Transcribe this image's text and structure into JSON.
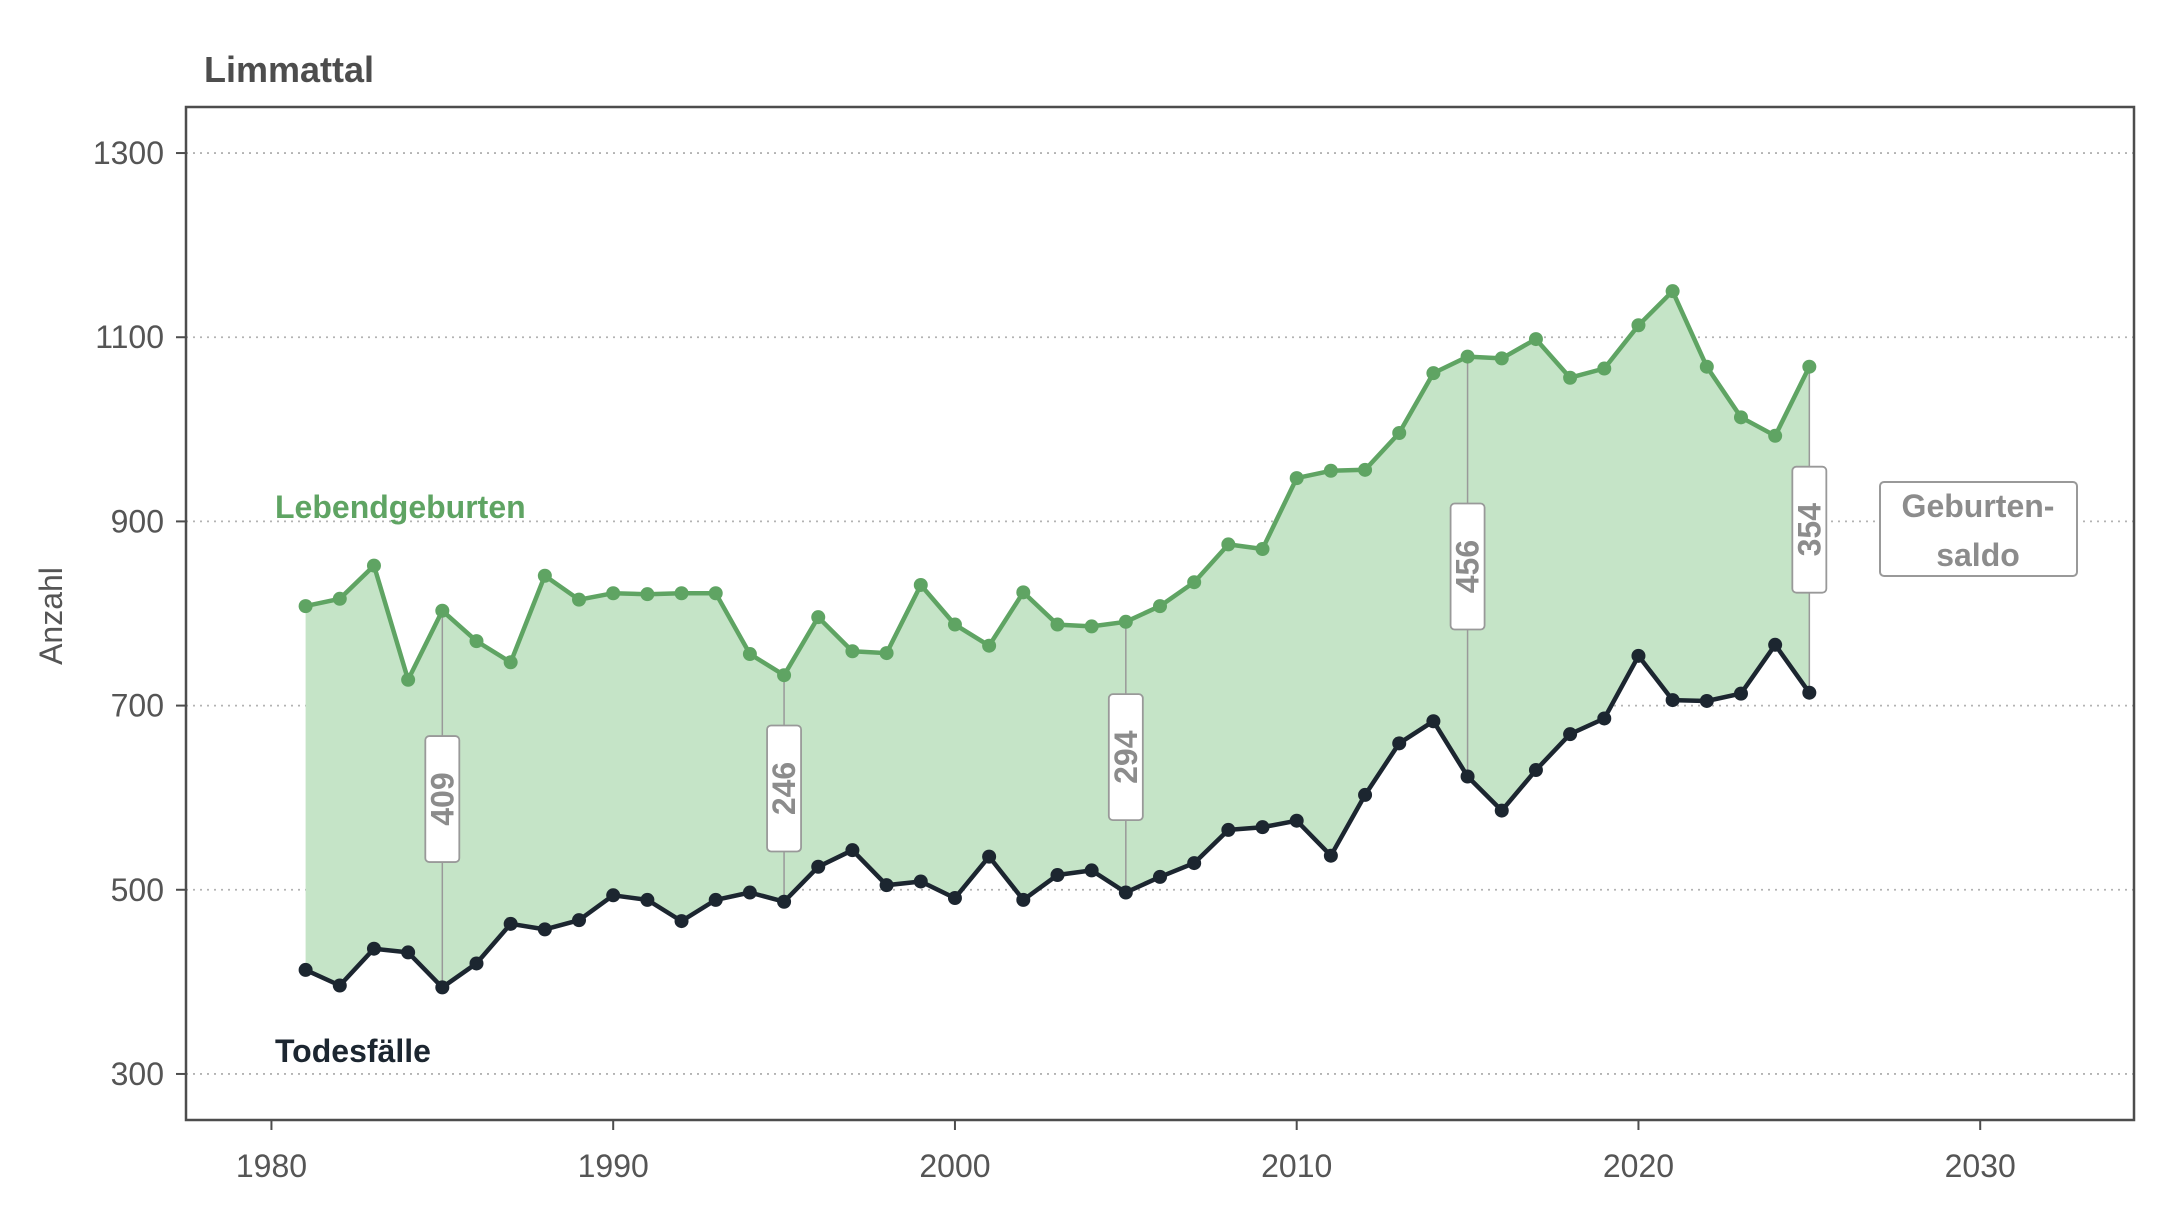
{
  "chart_data": {
    "type": "line",
    "title": "Limmattal",
    "ylabel": "Anzahl",
    "xlabel": "",
    "xlim": [
      1977.5,
      2034.5
    ],
    "ylim": [
      250,
      1350
    ],
    "x_ticks": [
      1980,
      1990,
      2000,
      2010,
      2020,
      2030
    ],
    "y_ticks": [
      300,
      500,
      700,
      900,
      1100,
      1300
    ],
    "grid": "horizontal dotted",
    "x": [
      1981,
      1982,
      1983,
      1984,
      1985,
      1986,
      1987,
      1988,
      1989,
      1990,
      1991,
      1992,
      1993,
      1994,
      1995,
      1996,
      1997,
      1998,
      1999,
      2000,
      2001,
      2002,
      2003,
      2004,
      2005,
      2006,
      2007,
      2008,
      2009,
      2010,
      2011,
      2012,
      2013,
      2014,
      2015,
      2016,
      2017,
      2018,
      2019,
      2020,
      2021,
      2022,
      2023,
      2024,
      2025
    ],
    "series": [
      {
        "name": "Lebendgeburten",
        "color": "#5fa463",
        "values": [
          808,
          816,
          852,
          728,
          803,
          770,
          747,
          841,
          815,
          822,
          821,
          822,
          822,
          756,
          733,
          796,
          759,
          757,
          831,
          788,
          765,
          823,
          788,
          786,
          791,
          808,
          834,
          875,
          870,
          947,
          955,
          956,
          996,
          1061,
          1079,
          1077,
          1098,
          1056,
          1066,
          1113,
          1150,
          1068,
          1013,
          993,
          1068
        ]
      },
      {
        "name": "Todesfälle",
        "color": "#1c2630",
        "values": [
          413,
          396,
          436,
          432,
          394,
          420,
          463,
          457,
          467,
          494,
          489,
          466,
          489,
          497,
          487,
          525,
          543,
          505,
          509,
          491,
          536,
          489,
          516,
          521,
          497,
          514,
          529,
          565,
          568,
          575,
          537,
          603,
          659,
          683,
          623,
          586,
          630,
          669,
          686,
          754,
          706,
          705,
          713,
          766,
          714
        ]
      }
    ],
    "area_fill": "#c5e4c7",
    "saldo_annotations": [
      {
        "x": 1985,
        "value": "409"
      },
      {
        "x": 1995,
        "value": "246"
      },
      {
        "x": 2005,
        "value": "294"
      },
      {
        "x": 2015,
        "value": "456"
      },
      {
        "x": 2025,
        "value": "354"
      }
    ],
    "saldo_legend": [
      "Geburten-",
      "saldo"
    ]
  }
}
